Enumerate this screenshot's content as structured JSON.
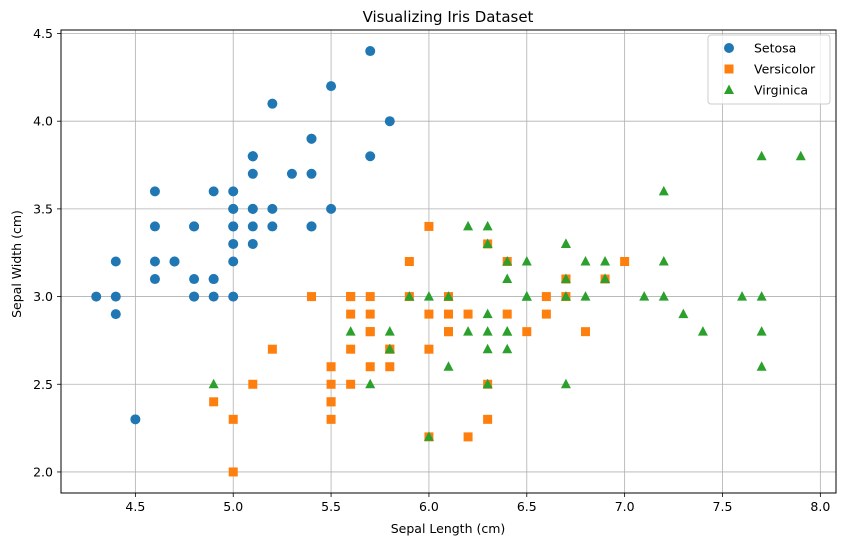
{
  "chart_data": {
    "type": "scatter",
    "title": "Visualizing Iris Dataset",
    "xlabel": "Sepal Length (cm)",
    "ylabel": "Sepal Width (cm)",
    "xlim": [
      4.12,
      8.08
    ],
    "ylim": [
      1.88,
      4.52
    ],
    "xticks": [
      "4.5",
      "5.0",
      "5.5",
      "6.0",
      "6.5",
      "7.0",
      "7.5",
      "8.0"
    ],
    "yticks": [
      "2.0",
      "2.5",
      "3.0",
      "3.5",
      "4.0",
      "4.5"
    ],
    "grid": true,
    "legend_position": "top-right",
    "series": [
      {
        "name": "Setosa",
        "marker": "circle",
        "color": "#1f77b4",
        "points": [
          [
            5.1,
            3.5
          ],
          [
            4.9,
            3.0
          ],
          [
            4.7,
            3.2
          ],
          [
            4.6,
            3.1
          ],
          [
            5.0,
            3.6
          ],
          [
            5.4,
            3.9
          ],
          [
            4.6,
            3.4
          ],
          [
            5.0,
            3.4
          ],
          [
            4.4,
            2.9
          ],
          [
            4.9,
            3.1
          ],
          [
            5.4,
            3.7
          ],
          [
            4.8,
            3.4
          ],
          [
            4.8,
            3.0
          ],
          [
            4.3,
            3.0
          ],
          [
            5.8,
            4.0
          ],
          [
            5.7,
            4.4
          ],
          [
            5.4,
            3.9
          ],
          [
            5.1,
            3.5
          ],
          [
            5.7,
            3.8
          ],
          [
            5.1,
            3.8
          ],
          [
            5.4,
            3.4
          ],
          [
            5.1,
            3.7
          ],
          [
            4.6,
            3.6
          ],
          [
            5.1,
            3.3
          ],
          [
            4.8,
            3.4
          ],
          [
            5.0,
            3.0
          ],
          [
            5.0,
            3.4
          ],
          [
            5.2,
            3.5
          ],
          [
            5.2,
            3.4
          ],
          [
            4.7,
            3.2
          ],
          [
            4.8,
            3.1
          ],
          [
            5.4,
            3.4
          ],
          [
            5.2,
            4.1
          ],
          [
            5.5,
            4.2
          ],
          [
            4.9,
            3.1
          ],
          [
            5.0,
            3.2
          ],
          [
            5.5,
            3.5
          ],
          [
            4.9,
            3.6
          ],
          [
            4.4,
            3.0
          ],
          [
            5.1,
            3.4
          ],
          [
            5.0,
            3.5
          ],
          [
            4.5,
            2.3
          ],
          [
            4.4,
            3.2
          ],
          [
            5.0,
            3.5
          ],
          [
            5.1,
            3.8
          ],
          [
            4.8,
            3.0
          ],
          [
            5.1,
            3.8
          ],
          [
            4.6,
            3.2
          ],
          [
            5.3,
            3.7
          ],
          [
            5.0,
            3.3
          ]
        ]
      },
      {
        "name": "Versicolor",
        "marker": "square",
        "color": "#ff7f0e",
        "points": [
          [
            7.0,
            3.2
          ],
          [
            6.4,
            3.2
          ],
          [
            6.9,
            3.1
          ],
          [
            5.5,
            2.3
          ],
          [
            6.5,
            2.8
          ],
          [
            5.7,
            2.8
          ],
          [
            6.3,
            3.3
          ],
          [
            4.9,
            2.4
          ],
          [
            6.6,
            2.9
          ],
          [
            5.2,
            2.7
          ],
          [
            5.0,
            2.0
          ],
          [
            5.9,
            3.0
          ],
          [
            6.0,
            2.2
          ],
          [
            6.1,
            2.9
          ],
          [
            5.6,
            2.9
          ],
          [
            6.7,
            3.1
          ],
          [
            5.6,
            3.0
          ],
          [
            5.8,
            2.7
          ],
          [
            6.2,
            2.2
          ],
          [
            5.6,
            2.5
          ],
          [
            5.9,
            3.2
          ],
          [
            6.1,
            2.8
          ],
          [
            6.3,
            2.5
          ],
          [
            6.1,
            2.8
          ],
          [
            6.4,
            2.9
          ],
          [
            6.6,
            3.0
          ],
          [
            6.8,
            2.8
          ],
          [
            6.7,
            3.0
          ],
          [
            6.0,
            2.9
          ],
          [
            5.7,
            2.6
          ],
          [
            5.5,
            2.4
          ],
          [
            5.5,
            2.4
          ],
          [
            5.8,
            2.7
          ],
          [
            6.0,
            2.7
          ],
          [
            5.4,
            3.0
          ],
          [
            6.0,
            3.4
          ],
          [
            6.7,
            3.1
          ],
          [
            6.3,
            2.3
          ],
          [
            5.6,
            3.0
          ],
          [
            5.5,
            2.5
          ],
          [
            5.5,
            2.6
          ],
          [
            6.1,
            3.0
          ],
          [
            5.8,
            2.6
          ],
          [
            5.0,
            2.3
          ],
          [
            5.6,
            2.7
          ],
          [
            5.7,
            3.0
          ],
          [
            5.7,
            2.9
          ],
          [
            6.2,
            2.9
          ],
          [
            5.1,
            2.5
          ],
          [
            5.7,
            2.8
          ]
        ]
      },
      {
        "name": "Virginica",
        "marker": "triangle",
        "color": "#2ca02c",
        "points": [
          [
            6.3,
            3.3
          ],
          [
            5.8,
            2.7
          ],
          [
            7.1,
            3.0
          ],
          [
            6.3,
            2.9
          ],
          [
            6.5,
            3.0
          ],
          [
            7.6,
            3.0
          ],
          [
            4.9,
            2.5
          ],
          [
            7.3,
            2.9
          ],
          [
            6.7,
            2.5
          ],
          [
            7.2,
            3.6
          ],
          [
            6.5,
            3.2
          ],
          [
            6.4,
            2.7
          ],
          [
            6.8,
            3.0
          ],
          [
            5.7,
            2.5
          ],
          [
            5.8,
            2.8
          ],
          [
            6.4,
            3.2
          ],
          [
            6.5,
            3.0
          ],
          [
            7.7,
            3.8
          ],
          [
            7.7,
            2.6
          ],
          [
            6.0,
            2.2
          ],
          [
            6.9,
            3.2
          ],
          [
            5.6,
            2.8
          ],
          [
            7.7,
            2.8
          ],
          [
            6.3,
            2.7
          ],
          [
            6.7,
            3.3
          ],
          [
            7.2,
            3.2
          ],
          [
            6.2,
            2.8
          ],
          [
            6.1,
            3.0
          ],
          [
            6.4,
            2.8
          ],
          [
            7.2,
            3.0
          ],
          [
            7.4,
            2.8
          ],
          [
            7.9,
            3.8
          ],
          [
            6.4,
            2.8
          ],
          [
            6.3,
            2.8
          ],
          [
            6.1,
            2.6
          ],
          [
            7.7,
            3.0
          ],
          [
            6.3,
            3.4
          ],
          [
            6.4,
            3.1
          ],
          [
            6.0,
            3.0
          ],
          [
            6.9,
            3.1
          ],
          [
            6.7,
            3.1
          ],
          [
            6.9,
            3.1
          ],
          [
            5.8,
            2.7
          ],
          [
            6.8,
            3.2
          ],
          [
            6.7,
            3.3
          ],
          [
            6.7,
            3.0
          ],
          [
            6.3,
            2.5
          ],
          [
            6.5,
            3.0
          ],
          [
            6.2,
            3.4
          ],
          [
            5.9,
            3.0
          ]
        ]
      }
    ]
  }
}
